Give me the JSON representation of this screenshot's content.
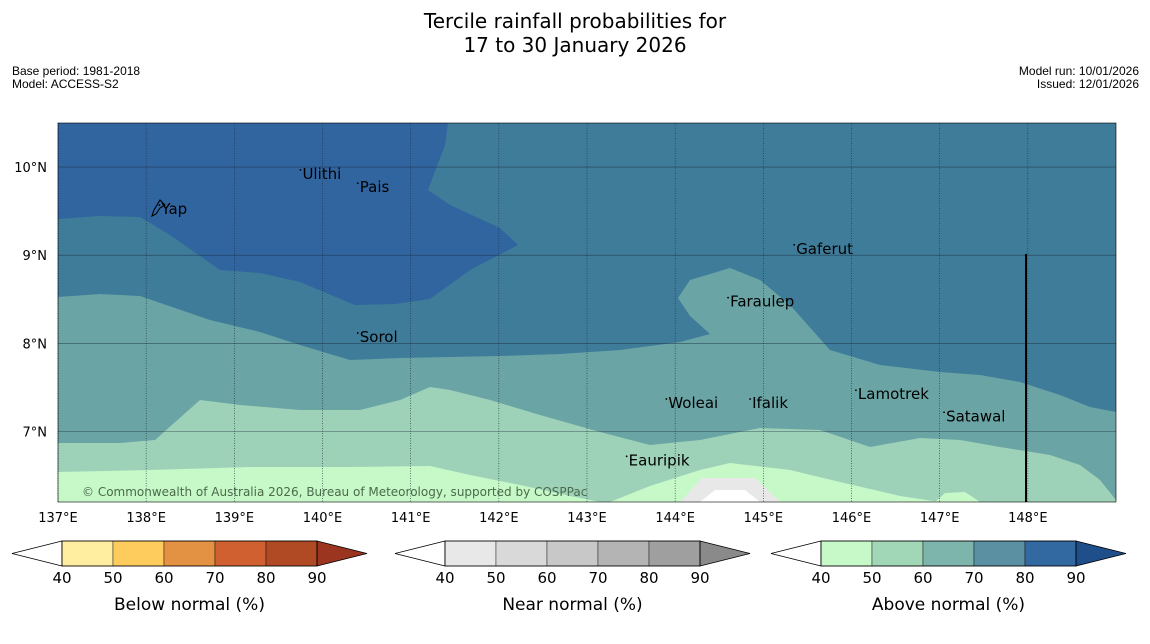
{
  "header": {
    "title_line1": "Tercile rainfall probabilities for",
    "title_line2": "17 to 30 January 2026",
    "base_period": "Base period: 1981-2018",
    "model": "Model: ACCESS-S2",
    "model_run": "Model run: 10/01/2026",
    "issued": "Issued: 12/01/2026"
  },
  "chart_data": {
    "type": "heatmap",
    "title": "Tercile rainfall probabilities for 17 to 30 January 2026",
    "lon_range": [
      137.0,
      149.0
    ],
    "lat_range": [
      6.2,
      10.5
    ],
    "x_ticks": [
      137,
      138,
      139,
      140,
      141,
      142,
      143,
      144,
      145,
      146,
      147,
      148
    ],
    "x_tick_labels": [
      "137°E",
      "138°E",
      "139°E",
      "140°E",
      "141°E",
      "142°E",
      "143°E",
      "144°E",
      "145°E",
      "146°E",
      "147°E",
      "148°E"
    ],
    "y_ticks": [
      7,
      8,
      9,
      10
    ],
    "y_tick_labels": [
      "7°N",
      "8°N",
      "9°N",
      "10°N"
    ],
    "grid": true,
    "places": [
      {
        "name": "Yap",
        "lon": 138.15,
        "lat": 9.5
      },
      {
        "name": "Ulithi",
        "lon": 139.75,
        "lat": 9.9
      },
      {
        "name": "Pais",
        "lon": 140.4,
        "lat": 9.75
      },
      {
        "name": "Gaferut",
        "lon": 145.35,
        "lat": 9.05
      },
      {
        "name": "Faraulep",
        "lon": 144.6,
        "lat": 8.45
      },
      {
        "name": "Sorol",
        "lon": 140.4,
        "lat": 8.05
      },
      {
        "name": "Lamotrek",
        "lon": 146.05,
        "lat": 7.4
      },
      {
        "name": "Woleai",
        "lon": 143.9,
        "lat": 7.3
      },
      {
        "name": "Ifalik",
        "lon": 144.85,
        "lat": 7.3
      },
      {
        "name": "Satawal",
        "lon": 147.05,
        "lat": 7.15
      },
      {
        "name": "Eauripik",
        "lon": 143.45,
        "lat": 6.65
      }
    ],
    "credit": "© Commonwealth of Australia 2026, Bureau of Meteorology, supported by COSPPac",
    "colorbars": [
      {
        "label": "Below normal (%)",
        "ticks": [
          "40",
          "50",
          "60",
          "70",
          "80",
          "90"
        ],
        "colors": [
          "#ffeda0",
          "#fecc5c",
          "#e39244",
          "#d0602f",
          "#b04a25",
          "#9b3520"
        ]
      },
      {
        "label": "Near normal (%)",
        "ticks": [
          "40",
          "50",
          "60",
          "70",
          "80",
          "90"
        ],
        "colors": [
          "#e8e8e8",
          "#d9d9d9",
          "#c8c8c8",
          "#b4b4b4",
          "#9f9f9f",
          "#8a8a8a"
        ]
      },
      {
        "label": "Above normal (%)",
        "ticks": [
          "40",
          "50",
          "60",
          "70",
          "80",
          "90"
        ],
        "colors": [
          "#c7f9c8",
          "#a1d6b7",
          "#7db5ad",
          "#5b90a2",
          "#3169a0",
          "#1f4f8a"
        ]
      }
    ],
    "regions": [
      {
        "category": "Above normal",
        "band": "40-50",
        "color": "#c7f9c8"
      },
      {
        "category": "Above normal",
        "band": "50-60",
        "color": "#9ed2b8"
      },
      {
        "category": "Above normal",
        "band": "60-70",
        "color": "#6aa4a5"
      },
      {
        "category": "Above normal",
        "band": "70-80",
        "color": "#3f7c9a"
      },
      {
        "category": "Above normal",
        "band": "80-90",
        "color": "#3065a0"
      },
      {
        "category": "Near normal",
        "band": "40-50",
        "color": "#e8e8e8"
      }
    ]
  }
}
